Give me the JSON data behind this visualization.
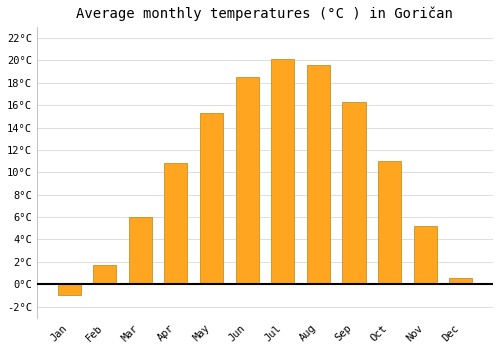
{
  "title": "Average monthly temperatures (°C ) in Goričan",
  "months": [
    "Jan",
    "Feb",
    "Mar",
    "Apr",
    "May",
    "Jun",
    "Jul",
    "Aug",
    "Sep",
    "Oct",
    "Nov",
    "Dec"
  ],
  "temperatures": [
    -1.0,
    1.7,
    6.0,
    10.8,
    15.3,
    18.5,
    20.1,
    19.6,
    16.3,
    11.0,
    5.2,
    0.6
  ],
  "bar_color": "#FFA520",
  "bar_edge_color": "#B8860B",
  "background_color": "#FFFFFF",
  "grid_color": "#DDDDDD",
  "ylim": [
    -3,
    23
  ],
  "yticks": [
    -2,
    0,
    2,
    4,
    6,
    8,
    10,
    12,
    14,
    16,
    18,
    20,
    22
  ],
  "ytick_labels": [
    "-2°C",
    "0°C",
    "2°C",
    "4°C",
    "6°C",
    "8°C",
    "10°C",
    "12°C",
    "14°C",
    "16°C",
    "18°C",
    "20°C",
    "22°C"
  ],
  "title_fontsize": 10,
  "tick_fontsize": 7.5,
  "font_family": "monospace"
}
